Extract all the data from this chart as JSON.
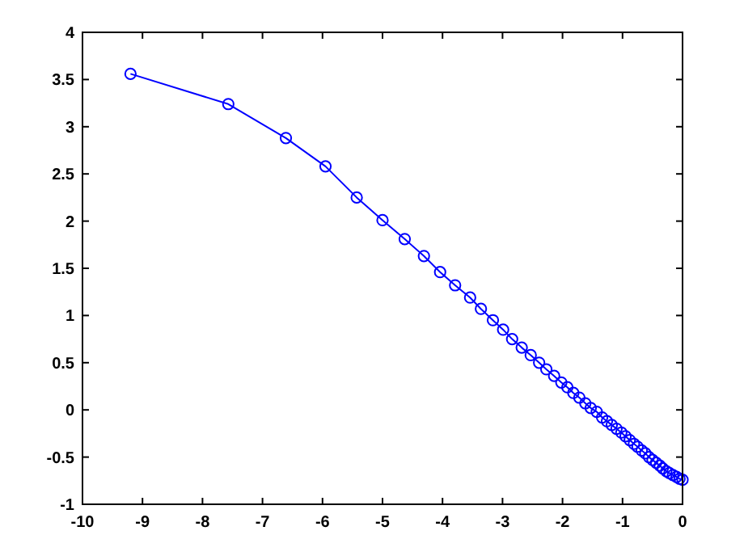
{
  "chart_data": {
    "type": "line",
    "x": [
      -9.2,
      -7.57,
      -6.61,
      -5.95,
      -5.43,
      -5.0,
      -4.63,
      -4.31,
      -4.04,
      -3.79,
      -3.54,
      -3.36,
      -3.16,
      -2.99,
      -2.84,
      -2.68,
      -2.53,
      -2.39,
      -2.27,
      -2.14,
      -2.02,
      -1.92,
      -1.82,
      -1.72,
      -1.62,
      -1.53,
      -1.43,
      -1.34,
      -1.26,
      -1.18,
      -1.1,
      -1.02,
      -0.95,
      -0.88,
      -0.81,
      -0.75,
      -0.68,
      -0.62,
      -0.56,
      -0.5,
      -0.44,
      -0.38,
      -0.33,
      -0.27,
      -0.22,
      -0.16,
      -0.1,
      -0.05,
      0
    ],
    "series": [
      {
        "color": "#0000ff",
        "values": [
          3.56,
          3.24,
          2.88,
          2.58,
          2.25,
          2.01,
          1.81,
          1.63,
          1.46,
          1.32,
          1.19,
          1.07,
          0.95,
          0.85,
          0.75,
          0.66,
          0.58,
          0.5,
          0.43,
          0.36,
          0.29,
          0.24,
          0.18,
          0.13,
          0.07,
          0.02,
          -0.02,
          -0.08,
          -0.12,
          -0.16,
          -0.2,
          -0.24,
          -0.28,
          -0.32,
          -0.36,
          -0.39,
          -0.43,
          -0.46,
          -0.5,
          -0.53,
          -0.56,
          -0.59,
          -0.62,
          -0.65,
          -0.67,
          -0.69,
          -0.71,
          -0.73,
          -0.74
        ]
      }
    ],
    "xlim": [
      -10,
      0
    ],
    "xticks": [
      -10,
      -9,
      -8,
      -7,
      -6,
      -5,
      -4,
      -3,
      -2,
      -1,
      0
    ],
    "ylim": [
      -1,
      4
    ],
    "yticks": [
      -1,
      -0.5,
      0,
      0.5,
      1,
      1.5,
      2,
      2.5,
      3,
      3.5,
      4
    ],
    "marker": "circle",
    "line_style": "solid",
    "grid": false
  }
}
